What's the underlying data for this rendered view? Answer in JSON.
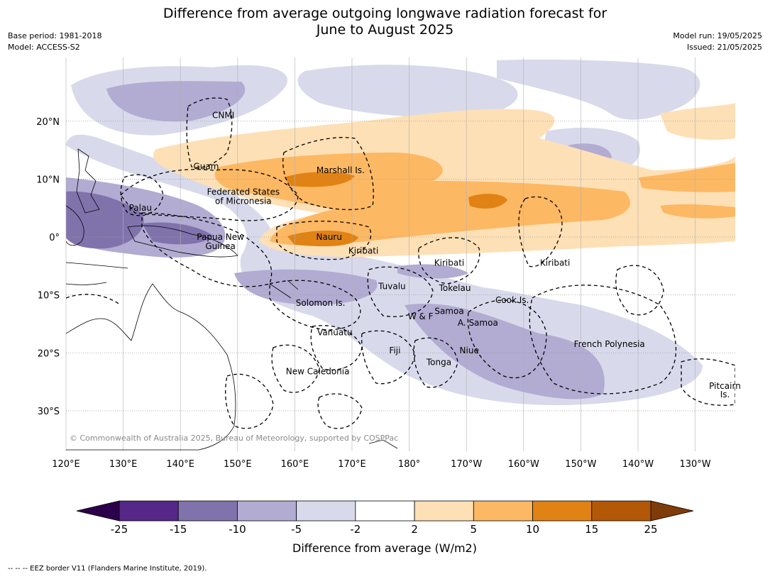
{
  "title_line1": "Difference from average outgoing longwave radiation forecast for",
  "title_line2": "June to August 2025",
  "meta_left": [
    "Base period: 1981-2018",
    "Model: ACCESS-S2"
  ],
  "meta_right": [
    "Model run: 19/05/2025",
    "Issued: 21/05/2025"
  ],
  "axes": {
    "lon_labels": [
      "120°E",
      "130°E",
      "140°E",
      "150°E",
      "160°E",
      "170°E",
      "180°",
      "170°W",
      "160°W",
      "150°W",
      "140°W",
      "130°W"
    ],
    "lat_labels": [
      "20°N",
      "10°N",
      "0°",
      "10°S",
      "20°S",
      "30°S"
    ],
    "lon_range": [
      120,
      237
    ],
    "lat_range": [
      -37,
      31
    ]
  },
  "places": [
    {
      "name": "CNMI",
      "lon": 147.5,
      "lat": 21
    },
    {
      "name": "Guam",
      "lon": 144.5,
      "lat": 12.2
    },
    {
      "name": "Marshall Is.",
      "lon": 168,
      "lat": 11.5
    },
    {
      "name": "Federated States",
      "lon": 151,
      "lat": 7.8
    },
    {
      "name": "of Micronesia",
      "lon": 151,
      "lat": 6.2
    },
    {
      "name": "Palau",
      "lon": 133,
      "lat": 5
    },
    {
      "name": "Papua New",
      "lon": 147,
      "lat": 0
    },
    {
      "name": "Guinea",
      "lon": 147,
      "lat": -1.6
    },
    {
      "name": "Nauru",
      "lon": 166,
      "lat": 0
    },
    {
      "name": "Kiribati",
      "lon": 172,
      "lat": -2.4
    },
    {
      "name": "Kiribati",
      "lon": 187,
      "lat": -4.5
    },
    {
      "name": "Kiribati",
      "lon": 205.5,
      "lat": -4.5
    },
    {
      "name": "Tuvalu",
      "lon": 177,
      "lat": -8.5
    },
    {
      "name": "Tokelau",
      "lon": 188,
      "lat": -8.8
    },
    {
      "name": "Cook Is.",
      "lon": 198,
      "lat": -10.9
    },
    {
      "name": "Solomon Is.",
      "lon": 164.5,
      "lat": -11.4
    },
    {
      "name": "Samoa",
      "lon": 187,
      "lat": -12.8
    },
    {
      "name": "W & F",
      "lon": 182,
      "lat": -13.7
    },
    {
      "name": "A. Samoa",
      "lon": 192,
      "lat": -14.8
    },
    {
      "name": "Vanuatu",
      "lon": 167,
      "lat": -16.5
    },
    {
      "name": "Fiji",
      "lon": 177.5,
      "lat": -19.6
    },
    {
      "name": "Niue",
      "lon": 190.5,
      "lat": -19.6
    },
    {
      "name": "French Polynesia",
      "lon": 215,
      "lat": -18.5
    },
    {
      "name": "Tonga",
      "lon": 185.2,
      "lat": -21.6
    },
    {
      "name": "New Caledonia",
      "lon": 164,
      "lat": -23.2
    },
    {
      "name": "Pitcairn",
      "lon": 235.2,
      "lat": -25.7
    },
    {
      "name": "Is.",
      "lon": 235.2,
      "lat": -27.2
    }
  ],
  "copyright": "© Commonwealth of Australia 2025, Bureau of Meteorology, supported by COSPPac",
  "colorbar": {
    "label": "Difference from average (W/m2)",
    "ticks": [
      "-25",
      "-15",
      "-10",
      "-5",
      "-2",
      "2",
      "5",
      "10",
      "15",
      "25"
    ],
    "low_extend_color": "#2d004b",
    "high_extend_color": "#7f3b08",
    "colors": [
      "#542788",
      "#8073ac",
      "#b2abd2",
      "#d8daeb",
      "#ffffff",
      "#fee0b6",
      "#fdb863",
      "#e08214",
      "#b35806"
    ]
  },
  "field_colors": {
    "purple_light": "#d8daeb",
    "purple_mid": "#b2abd2",
    "purple_dark": "#8073ac",
    "orange_light": "#fee0b6",
    "orange_mid": "#fdb863",
    "orange_dark": "#e08214"
  },
  "footnote": "--  --  -- EEZ border V11 (Flanders Marine Institute, 2019)."
}
